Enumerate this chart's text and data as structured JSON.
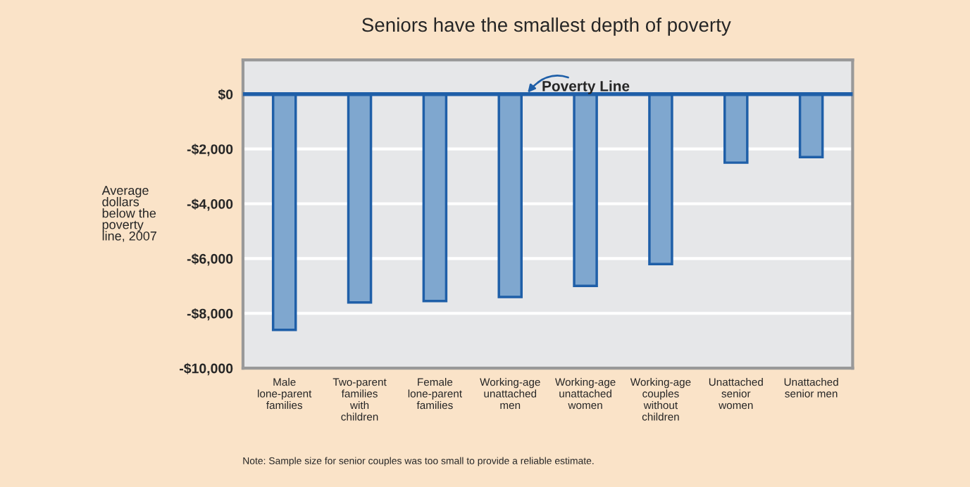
{
  "chart_data": {
    "type": "bar",
    "title": "Seniors have the smallest depth of poverty",
    "ylabel": "Average\ndollars\nbelow the\npoverty\nline, 2007",
    "categories": [
      "Male\nlone-parent\nfamilies",
      "Two-parent\nfamilies\nwith\nchildren",
      "Female\nlone-parent\nfamilies",
      "Working-age\nunattached\nmen",
      "Working-age\nunattached\nwomen",
      "Working-age\ncouples\nwithout\nchildren",
      "Unattached\nsenior\nwomen",
      "Unattached\nsenior men"
    ],
    "values": [
      -8600,
      -7600,
      -7550,
      -7400,
      -7000,
      -6200,
      -2500,
      -2300
    ],
    "color": "#7fa7cf",
    "ylim": [
      -10000,
      1250
    ],
    "yticks": [
      {
        "value": -10000,
        "label": "-$10,000"
      },
      {
        "value": -8000,
        "label": "-$8,000"
      },
      {
        "value": -6000,
        "label": "-$6,000"
      },
      {
        "value": -4000,
        "label": "-$4,000"
      },
      {
        "value": -2000,
        "label": "-$2,000"
      },
      {
        "value": 0,
        "label": "$0"
      }
    ],
    "grid": "y",
    "ref_lines": [
      {
        "axis": "y",
        "value": 0,
        "label": "Poverty Line",
        "color": "#1f5fa8"
      }
    ],
    "annotations": [
      "Note: Sample size for senior couples was too small to provide a reliable estimate."
    ]
  }
}
